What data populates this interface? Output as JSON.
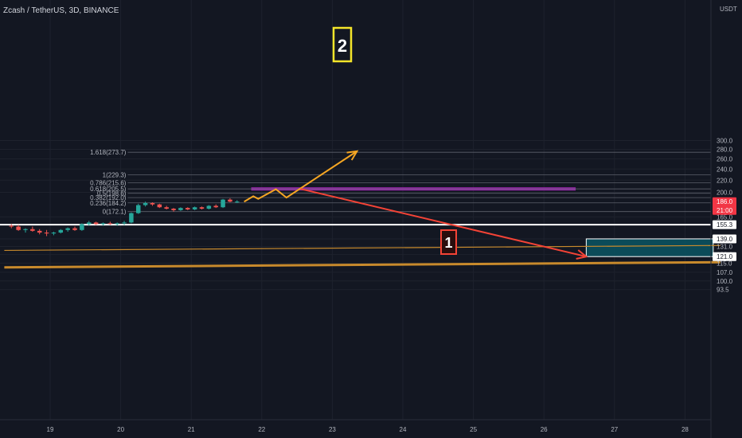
{
  "header": {
    "title": "Zcash / TetherUS, 3D, BINANCE",
    "currency": "USDT"
  },
  "chart_data": {
    "type": "candlestick",
    "title": "Zcash / TetherUS, 3D, BINANCE",
    "currency": "USDT",
    "y_axis_scale": "log",
    "y_range": [
      90,
      350
    ],
    "x_range": [
      18.4,
      28.5
    ],
    "x_ticks": [
      "19",
      "20",
      "21",
      "22",
      "23",
      "24",
      "25",
      "26",
      "27",
      "28"
    ],
    "y_ticks": [
      "93.5",
      "100.0",
      "107.0",
      "115.0",
      "123.0",
      "131.0",
      "139.0",
      "165.0",
      "200.0",
      "220.0",
      "240.0",
      "260.0",
      "280.0",
      "300.0"
    ],
    "price_labels": [
      {
        "text": "186.0",
        "sub": "21:00",
        "value": 186.0,
        "color": "#f23645"
      },
      {
        "text": "155.3",
        "value": 155.3,
        "color": "#ffffff"
      },
      {
        "text": "139.0",
        "value": 139.0,
        "color": "#ffffff"
      },
      {
        "text": "121.0",
        "value": 121.0,
        "color": "#ffffff"
      }
    ],
    "fib_levels": [
      {
        "label": "0(172.1)",
        "value": 172.1
      },
      {
        "label": "0.236(184.2)",
        "value": 184.2
      },
      {
        "label": "0.382(192.0)",
        "value": 192.0
      },
      {
        "label": "0.5(198.6)",
        "value": 198.6
      },
      {
        "label": "0.618(205.5)",
        "value": 205.5
      },
      {
        "label": "0.786(215.6)",
        "value": 215.6
      },
      {
        "label": "1(229.3)",
        "value": 229.3
      },
      {
        "label": "1.618(273.7)",
        "value": 273.7
      }
    ],
    "horizontal_line": {
      "value": 155.3,
      "color": "#ffffff"
    },
    "resistance_zone": {
      "x0": 21.85,
      "x1": 26.45,
      "y_low": 203,
      "y_high": 208,
      "color": "#9c27b0"
    },
    "target_box": {
      "x0": 26.6,
      "x1": 28.4,
      "y_low": 121,
      "y_high": 139,
      "color": "#0b5563"
    },
    "trendlines": [
      {
        "name": "trend-upper",
        "color": "#c88a2c",
        "points": [
          [
            18.35,
            127.0
          ],
          [
            28.5,
            132.0
          ]
        ]
      },
      {
        "name": "trend-lower",
        "color": "#c88a2c",
        "points": [
          [
            18.35,
            111.2
          ],
          [
            28.5,
            115.8
          ]
        ]
      }
    ],
    "scenario_up": {
      "label": "2",
      "color": "#f5a623",
      "points": [
        [
          21.75,
          186.0
        ],
        [
          21.88,
          194.0
        ],
        [
          21.95,
          190.0
        ],
        [
          22.2,
          205.0
        ],
        [
          22.35,
          192.0
        ],
        [
          23.35,
          276.0
        ]
      ]
    },
    "scenario_down": {
      "label": "1",
      "color": "#f44336",
      "points": [
        [
          22.55,
          205.5
        ],
        [
          26.6,
          121.0
        ]
      ]
    },
    "candles": [
      {
        "x": 18.45,
        "o": 154,
        "h": 156,
        "l": 151,
        "c": 153
      },
      {
        "x": 18.55,
        "o": 153,
        "h": 155,
        "l": 148,
        "c": 149
      },
      {
        "x": 18.65,
        "o": 149,
        "h": 151,
        "l": 146,
        "c": 150
      },
      {
        "x": 18.75,
        "o": 150,
        "h": 153,
        "l": 147,
        "c": 148
      },
      {
        "x": 18.85,
        "o": 148,
        "h": 150,
        "l": 144,
        "c": 146
      },
      {
        "x": 18.95,
        "o": 146,
        "h": 149,
        "l": 142,
        "c": 145
      },
      {
        "x": 19.05,
        "o": 145,
        "h": 147,
        "l": 143,
        "c": 146
      },
      {
        "x": 19.15,
        "o": 146,
        "h": 150,
        "l": 145,
        "c": 149
      },
      {
        "x": 19.25,
        "o": 149,
        "h": 152,
        "l": 147,
        "c": 151
      },
      {
        "x": 19.35,
        "o": 151,
        "h": 153,
        "l": 148,
        "c": 149
      },
      {
        "x": 19.45,
        "o": 149,
        "h": 157,
        "l": 148,
        "c": 156
      },
      {
        "x": 19.55,
        "o": 156,
        "h": 160,
        "l": 154,
        "c": 158
      },
      {
        "x": 19.65,
        "o": 158,
        "h": 159,
        "l": 155,
        "c": 156
      },
      {
        "x": 19.75,
        "o": 156,
        "h": 158,
        "l": 154,
        "c": 157
      },
      {
        "x": 19.85,
        "o": 157,
        "h": 159,
        "l": 155,
        "c": 156
      },
      {
        "x": 19.95,
        "o": 156,
        "h": 158,
        "l": 154,
        "c": 157
      },
      {
        "x": 20.05,
        "o": 157,
        "h": 160,
        "l": 155,
        "c": 158
      },
      {
        "x": 20.15,
        "o": 158,
        "h": 171,
        "l": 157,
        "c": 170
      },
      {
        "x": 20.25,
        "o": 170,
        "h": 183,
        "l": 169,
        "c": 181
      },
      {
        "x": 20.35,
        "o": 181,
        "h": 186,
        "l": 179,
        "c": 184
      },
      {
        "x": 20.45,
        "o": 184,
        "h": 185,
        "l": 180,
        "c": 182
      },
      {
        "x": 20.55,
        "o": 182,
        "h": 183,
        "l": 177,
        "c": 178
      },
      {
        "x": 20.65,
        "o": 178,
        "h": 180,
        "l": 175,
        "c": 176
      },
      {
        "x": 20.75,
        "o": 176,
        "h": 177,
        "l": 172,
        "c": 174
      },
      {
        "x": 20.85,
        "o": 174,
        "h": 178,
        "l": 173,
        "c": 177
      },
      {
        "x": 20.95,
        "o": 177,
        "h": 178,
        "l": 174,
        "c": 175
      },
      {
        "x": 21.05,
        "o": 175,
        "h": 179,
        "l": 174,
        "c": 178
      },
      {
        "x": 21.15,
        "o": 178,
        "h": 179,
        "l": 175,
        "c": 176
      },
      {
        "x": 21.25,
        "o": 176,
        "h": 181,
        "l": 175,
        "c": 180
      },
      {
        "x": 21.35,
        "o": 180,
        "h": 182,
        "l": 177,
        "c": 178
      },
      {
        "x": 21.45,
        "o": 178,
        "h": 190,
        "l": 177,
        "c": 189
      },
      {
        "x": 21.55,
        "o": 189,
        "h": 191,
        "l": 185,
        "c": 186
      },
      {
        "x": 21.65,
        "o": 186,
        "h": 188,
        "l": 184,
        "c": 186
      }
    ]
  }
}
